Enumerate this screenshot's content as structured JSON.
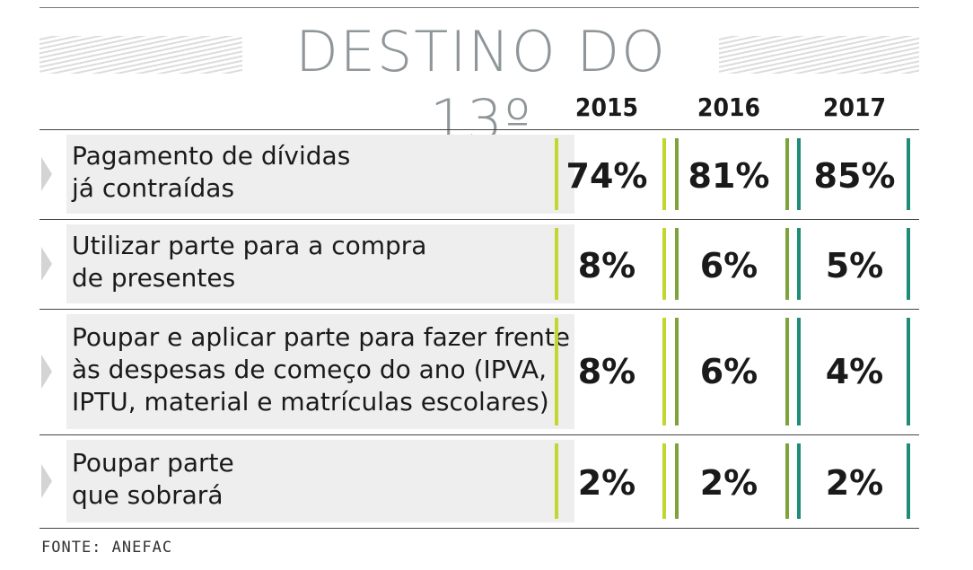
{
  "title": "DESTINO DO 13º",
  "source": "FONTE: ANEFAC",
  "colors": {
    "y2015": "#c2d62f",
    "y2016": "#7ea33a",
    "y2017": "#1f8c78",
    "title": "#8f9699"
  },
  "chart_data": {
    "type": "table",
    "title": "DESTINO DO 13º",
    "columns": [
      "2015",
      "2016",
      "2017"
    ],
    "rows": [
      {
        "label": "Pagamento de dívidas\njá contraídas",
        "values": [
          "74%",
          "81%",
          "85%"
        ]
      },
      {
        "label": "Utilizar parte para a compra\nde presentes",
        "values": [
          "8%",
          "6%",
          "5%"
        ]
      },
      {
        "label": "Poupar e aplicar parte para fazer frente\nàs despesas de começo do ano (IPVA,\nIPTU, material e matrículas escolares)",
        "values": [
          "8%",
          "6%",
          "4%"
        ]
      },
      {
        "label": "Poupar parte\nque sobrará",
        "values": [
          "2%",
          "2%",
          "2%"
        ]
      }
    ]
  }
}
